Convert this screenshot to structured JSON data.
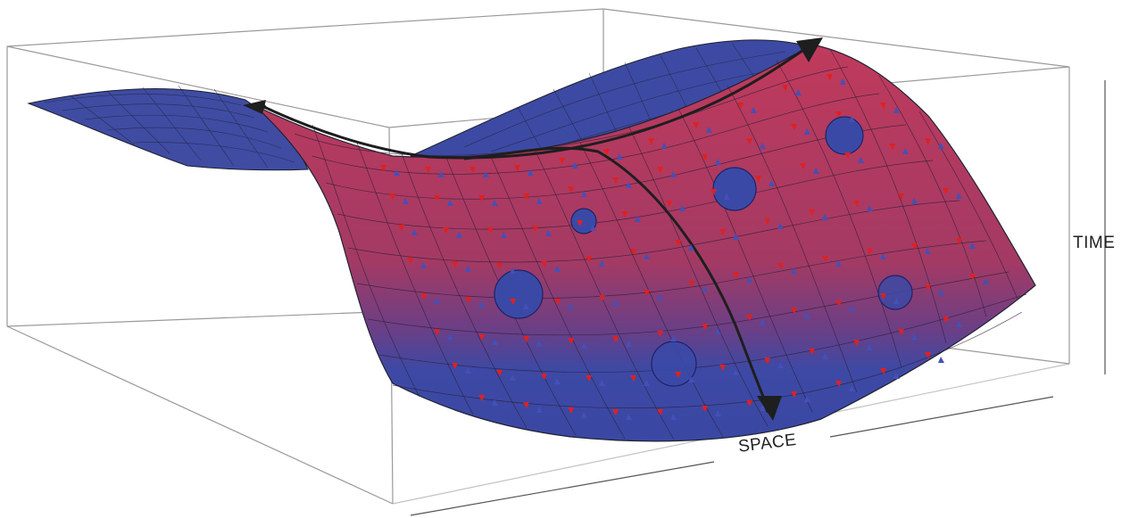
{
  "figure": {
    "axes": {
      "vertical": "TIME",
      "horizontal": "SPACE"
    },
    "colors": {
      "surface_top": "#3d4aa0",
      "surface_mid": "#a3395f",
      "surface_high": "#b8385a",
      "surface_bottom": "#3a48a3",
      "mesh": "#1f1f35",
      "arrow_red": "#e02020",
      "arrow_blue": "#4450b8",
      "box": "#9a9a9a",
      "curve": "#1e1e1e",
      "node_fill": "#3b49a6",
      "node_stroke": "#1e2266"
    },
    "nodes": {
      "count": 7
    },
    "main_curves": {
      "count": 2,
      "style": "black arrowed"
    }
  }
}
